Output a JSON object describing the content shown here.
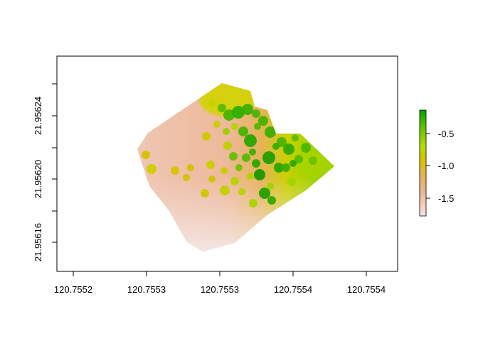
{
  "chart_data": {
    "type": "heatmap",
    "title": "",
    "xlabel": "",
    "ylabel": "",
    "x_ticks": [
      "120.7552",
      "120.7553",
      "120.7553",
      "120.7554",
      "120.7554"
    ],
    "y_ticks": [
      "21.95616",
      "21.95620",
      "21.95624"
    ],
    "legend": {
      "position": "right",
      "ticks": [
        "-0.5",
        "-1.0",
        "-1.5"
      ],
      "tick_values": [
        -0.5,
        -1.0,
        -1.5
      ],
      "min": -1.8,
      "max": -0.1,
      "colors": [
        "#f4e4e4",
        "#edb796",
        "#e6b35a",
        "#d8c400",
        "#b4dd00",
        "#5cc100",
        "#00a000"
      ]
    },
    "grid": false,
    "description_values": {
      "low_region": "pink/salmon (~-1.5 to -1.8) covering west and south",
      "high_region": "green patches (~-0.2 to -0.6) concentrated in the northeast"
    }
  }
}
